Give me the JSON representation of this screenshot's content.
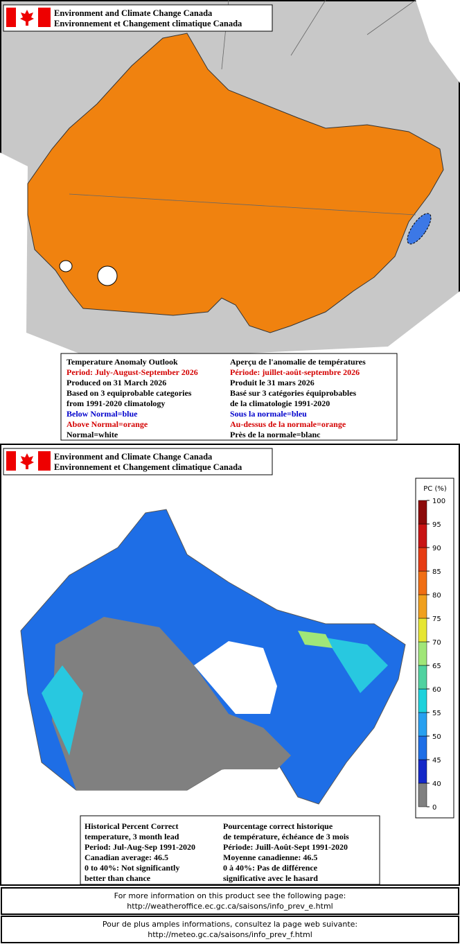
{
  "panels": [
    {
      "header": {
        "line1": "Environment and Climate Change Canada",
        "line2": "Environnement et Changement climatique Canada"
      },
      "legend": {
        "english": [
          {
            "text": "Temperature Anomaly Outlook",
            "color": "#000000"
          },
          {
            "text": "Period: July-August-September 2026",
            "color": "#d40000"
          },
          {
            "text": "Produced on 31 March 2026",
            "color": "#000000"
          },
          {
            "text": "Based on 3 equiprobable categories",
            "color": "#000000"
          },
          {
            "text": "from 1991-2020 climatology",
            "color": "#000000"
          },
          {
            "text": "Below Normal=blue",
            "color": "#0000cc"
          },
          {
            "text": "Above Normal=orange",
            "color": "#d40000"
          },
          {
            "text": "Normal=white",
            "color": "#000000"
          }
        ],
        "french": [
          {
            "text": "Aperçu de l'anomalie de températures",
            "color": "#000000"
          },
          {
            "text": "Période: juillet-août-septembre 2026",
            "color": "#d40000"
          },
          {
            "text": "Produit le 31 mars 2026",
            "color": "#000000"
          },
          {
            "text": "Basé sur 3 catégories équiprobables",
            "color": "#000000"
          },
          {
            "text": "de la climatologie 1991-2020",
            "color": "#000000"
          },
          {
            "text": "Sous la normale=bleu",
            "color": "#0000cc"
          },
          {
            "text": "Au-dessus de la normale=orange",
            "color": "#d40000"
          },
          {
            "text": "Près de la normale=blanc",
            "color": "#000000"
          }
        ]
      }
    },
    {
      "header": {
        "line1": "Environment and Climate Change Canada",
        "line2": "Environnement et Changement climatique Canada"
      },
      "legend": {
        "english": [
          {
            "text": "Historical Percent Correct",
            "color": "#000000"
          },
          {
            "text": "temperature, 3 month lead",
            "color": "#000000"
          },
          {
            "text": "Period: Jul-Aug-Sep 1991-2020",
            "color": "#000000"
          },
          {
            "text": "Canadian average: 46.5",
            "color": "#000000"
          },
          {
            "text": "0 to 40%: Not significantly",
            "color": "#000000"
          },
          {
            "text": "better than chance",
            "color": "#000000"
          }
        ],
        "french": [
          {
            "text": "Pourcentage correct historique",
            "color": "#000000"
          },
          {
            "text": "de température, échéance de 3 mois",
            "color": "#000000"
          },
          {
            "text": "Période: Juill-Août-Sept 1991-2020",
            "color": "#000000"
          },
          {
            "text": "Moyenne canadienne: 46.5",
            "color": "#000000"
          },
          {
            "text": "0 à 40%: Pas de différence",
            "color": "#000000"
          },
          {
            "text": "significative avec le hasard",
            "color": "#000000"
          }
        ]
      }
    }
  ],
  "colorbar": {
    "title": "PC (%)",
    "ticks": [
      0,
      40,
      45,
      50,
      55,
      60,
      65,
      70,
      75,
      80,
      85,
      90,
      95,
      100
    ],
    "colors": [
      "#808080",
      "#1428c8",
      "#1e6ee6",
      "#28a0f0",
      "#1ed2dc",
      "#50d2a0",
      "#a0e678",
      "#e6e632",
      "#f0a01e",
      "#f06e14",
      "#e63c14",
      "#c81414",
      "#8c0a0a"
    ]
  },
  "footer": [
    {
      "line1": "For more information on this product see the following page:",
      "line2": "http://weatheroffice.ec.gc.ca/saisons/info_prev_e.html"
    },
    {
      "line1": "Pour de plus amples informations, consultez la page web suivante:",
      "line2": "http://meteo.gc.ca/saisons/info_prev_f.html"
    }
  ]
}
